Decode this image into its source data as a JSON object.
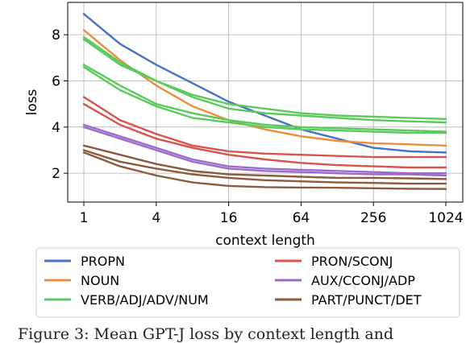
{
  "chart_data": {
    "type": "line",
    "xlabel": "context length",
    "ylabel": "loss",
    "x_scale": "log2",
    "xlim": [
      1,
      1024
    ],
    "ylim": [
      0.75,
      9.4
    ],
    "grid": true,
    "xticks": [
      1,
      4,
      16,
      64,
      256,
      1024
    ],
    "xtick_labels": [
      "1",
      "4",
      "16",
      "64",
      "256",
      "1024"
    ],
    "yticks": [
      2,
      4,
      6,
      8
    ],
    "ytick_labels": [
      "2",
      "4",
      "6",
      "8"
    ],
    "legend_position": "bottom",
    "legend": [
      {
        "label": "PROPN",
        "color": "#4472c4"
      },
      {
        "label": "PRON/SCONJ",
        "color": "#d9534f"
      },
      {
        "label": "NOUN",
        "color": "#ef8c3c"
      },
      {
        "label": "AUX/CCONJ/ADP",
        "color": "#9c6bc9"
      },
      {
        "label": "VERB/ADJ/ADV/NUM",
        "color": "#5cc95c"
      },
      {
        "label": "PART/PUNCT/DET",
        "color": "#8c5a3c"
      }
    ],
    "series": [
      {
        "color": "#4472c4",
        "x": [
          1,
          2,
          4,
          8,
          16,
          32,
          64,
          128,
          256,
          512,
          1024
        ],
        "y": [
          8.9,
          7.6,
          6.7,
          5.9,
          5.1,
          4.5,
          3.9,
          3.5,
          3.1,
          2.95,
          2.9
        ]
      },
      {
        "color": "#ef8c3c",
        "x": [
          1,
          2,
          4,
          8,
          16,
          32,
          64,
          128,
          256,
          512,
          1024
        ],
        "y": [
          8.2,
          6.9,
          5.8,
          4.9,
          4.3,
          3.9,
          3.6,
          3.4,
          3.3,
          3.25,
          3.2
        ]
      },
      {
        "color": "#5cc95c",
        "x": [
          1,
          2,
          4,
          8,
          16,
          32,
          64,
          128,
          256,
          512,
          1024
        ],
        "y": [
          7.9,
          6.8,
          6.0,
          5.4,
          5.0,
          4.8,
          4.6,
          4.5,
          4.45,
          4.4,
          4.35
        ]
      },
      {
        "color": "#5cc95c",
        "x": [
          1,
          2,
          4,
          8,
          16,
          32,
          64,
          128,
          256,
          512,
          1024
        ],
        "y": [
          7.8,
          6.7,
          6.0,
          5.3,
          4.8,
          4.6,
          4.5,
          4.4,
          4.3,
          4.25,
          4.2
        ]
      },
      {
        "color": "#5cc95c",
        "x": [
          1,
          2,
          4,
          8,
          16,
          32,
          64,
          128,
          256,
          512,
          1024
        ],
        "y": [
          6.7,
          5.8,
          5.0,
          4.6,
          4.3,
          4.1,
          4.0,
          3.95,
          3.9,
          3.85,
          3.8
        ]
      },
      {
        "color": "#5cc95c",
        "x": [
          1,
          2,
          4,
          8,
          16,
          32,
          64,
          128,
          256,
          512,
          1024
        ],
        "y": [
          6.6,
          5.6,
          4.9,
          4.4,
          4.2,
          4.0,
          3.9,
          3.85,
          3.8,
          3.75,
          3.75
        ]
      },
      {
        "color": "#d9534f",
        "x": [
          1,
          2,
          4,
          8,
          16,
          32,
          64,
          128,
          256,
          512,
          1024
        ],
        "y": [
          5.3,
          4.3,
          3.7,
          3.2,
          2.95,
          2.85,
          2.8,
          2.75,
          2.7,
          2.7,
          2.7
        ]
      },
      {
        "color": "#d9534f",
        "x": [
          1,
          2,
          4,
          8,
          16,
          32,
          64,
          128,
          256,
          512,
          1024
        ],
        "y": [
          5.0,
          4.1,
          3.5,
          3.1,
          2.8,
          2.6,
          2.45,
          2.35,
          2.3,
          2.25,
          2.25
        ]
      },
      {
        "color": "#9c6bc9",
        "x": [
          1,
          2,
          4,
          8,
          16,
          32,
          64,
          128,
          256,
          512,
          1024
        ],
        "y": [
          4.1,
          3.6,
          3.1,
          2.6,
          2.3,
          2.2,
          2.15,
          2.1,
          2.05,
          2.0,
          2.0
        ]
      },
      {
        "color": "#9c6bc9",
        "x": [
          1,
          2,
          4,
          8,
          16,
          32,
          64,
          128,
          256,
          512,
          1024
        ],
        "y": [
          4.0,
          3.5,
          3.0,
          2.5,
          2.2,
          2.1,
          2.05,
          2.0,
          1.95,
          1.95,
          1.9
        ]
      },
      {
        "color": "#8c5a3c",
        "x": [
          1,
          2,
          4,
          8,
          16,
          32,
          64,
          128,
          256,
          512,
          1024
        ],
        "y": [
          3.2,
          2.8,
          2.4,
          2.1,
          1.95,
          1.9,
          1.85,
          1.8,
          1.8,
          1.78,
          1.75
        ]
      },
      {
        "color": "#8c5a3c",
        "x": [
          1,
          2,
          4,
          8,
          16,
          32,
          64,
          128,
          256,
          512,
          1024
        ],
        "y": [
          3.0,
          2.5,
          2.2,
          1.95,
          1.8,
          1.7,
          1.65,
          1.6,
          1.58,
          1.55,
          1.55
        ]
      },
      {
        "color": "#8c5a3c",
        "x": [
          1,
          2,
          4,
          8,
          16,
          32,
          64,
          128,
          256,
          512,
          1024
        ],
        "y": [
          2.9,
          2.3,
          1.9,
          1.6,
          1.45,
          1.4,
          1.38,
          1.37,
          1.35,
          1.33,
          1.32
        ]
      }
    ]
  },
  "caption": "Figure 3: Mean GPT-J loss by context length and"
}
